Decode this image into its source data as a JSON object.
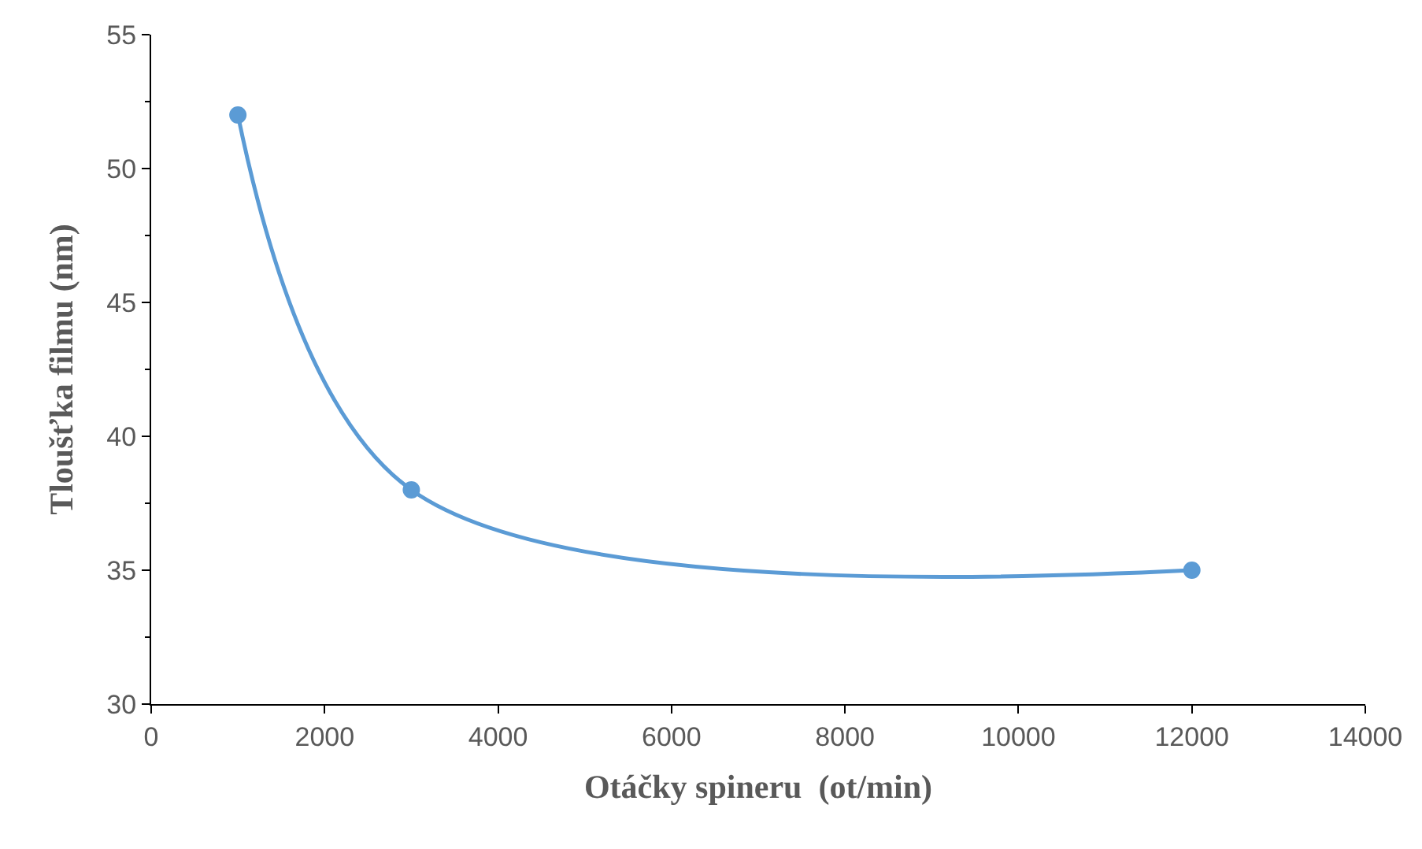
{
  "chart_data": {
    "type": "line",
    "xlabel": "Otáčky spineru  (ot/min)",
    "ylabel": "Tloušťka filmu (nm)",
    "x": [
      1000,
      3000,
      12000
    ],
    "series": [
      {
        "color": "#5b9bd5",
        "values": [
          52,
          38,
          35
        ]
      }
    ],
    "xlim": [
      0,
      14000
    ],
    "xticks": [
      0,
      2000,
      4000,
      6000,
      8000,
      10000,
      12000,
      14000
    ],
    "ylim": [
      30,
      55
    ],
    "yticks": [
      30,
      35,
      40,
      45,
      50,
      55
    ],
    "marker": "circle",
    "line_style": "solid"
  }
}
